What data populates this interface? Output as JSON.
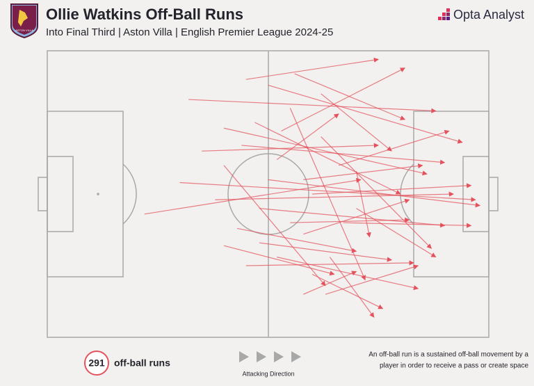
{
  "header": {
    "title": "Ollie Watkins Off-Ball Runs",
    "subtitle": "Into Final Third | Aston Villa | English Premier League 2024-25",
    "brand": "Opta Analyst",
    "badge": "ASTON VILLA"
  },
  "stat": {
    "count": 291,
    "label": "off-ball runs"
  },
  "direction": {
    "label": "Attacking Direction"
  },
  "note": {
    "lines": [
      "An off-ball run is a sustained off-ball movement by a",
      "player in order to receive a pass or create space"
    ]
  },
  "runs": [
    [
      22,
      57,
      71,
      45
    ],
    [
      35,
      35,
      75,
      33
    ],
    [
      45,
      10,
      75,
      3
    ],
    [
      50,
      12,
      94,
      32
    ],
    [
      32,
      17,
      88,
      21
    ],
    [
      40,
      27,
      86,
      43
    ],
    [
      44,
      33,
      90,
      39
    ],
    [
      30,
      46,
      97,
      52
    ],
    [
      50,
      45,
      98,
      54
    ],
    [
      60,
      50,
      96,
      47
    ],
    [
      55,
      60,
      82,
      59
    ],
    [
      43,
      62,
      70,
      70
    ],
    [
      48,
      67,
      78,
      73
    ],
    [
      52,
      72,
      84,
      83
    ],
    [
      60,
      78,
      76,
      90
    ],
    [
      58,
      85,
      70,
      77
    ],
    [
      38,
      52,
      92,
      50
    ],
    [
      40,
      40,
      63,
      82
    ],
    [
      47,
      25,
      80,
      50
    ],
    [
      55,
      20,
      72,
      80
    ],
    [
      62,
      30,
      87,
      69
    ],
    [
      66,
      40,
      91,
      28
    ],
    [
      70,
      55,
      88,
      72
    ],
    [
      52,
      38,
      66,
      22
    ],
    [
      45,
      75,
      83,
      74
    ],
    [
      58,
      64,
      82,
      52
    ],
    [
      64,
      72,
      74,
      93
    ],
    [
      40,
      68,
      65,
      78
    ],
    [
      56,
      8,
      81,
      24
    ],
    [
      62,
      15,
      78,
      35
    ],
    [
      48,
      55,
      90,
      61
    ],
    [
      70,
      42,
      73,
      65
    ],
    [
      53,
      28,
      81,
      6
    ],
    [
      67,
      60,
      96,
      61
    ],
    [
      58,
      45,
      85,
      40
    ],
    [
      63,
      85,
      84,
      75
    ]
  ]
}
